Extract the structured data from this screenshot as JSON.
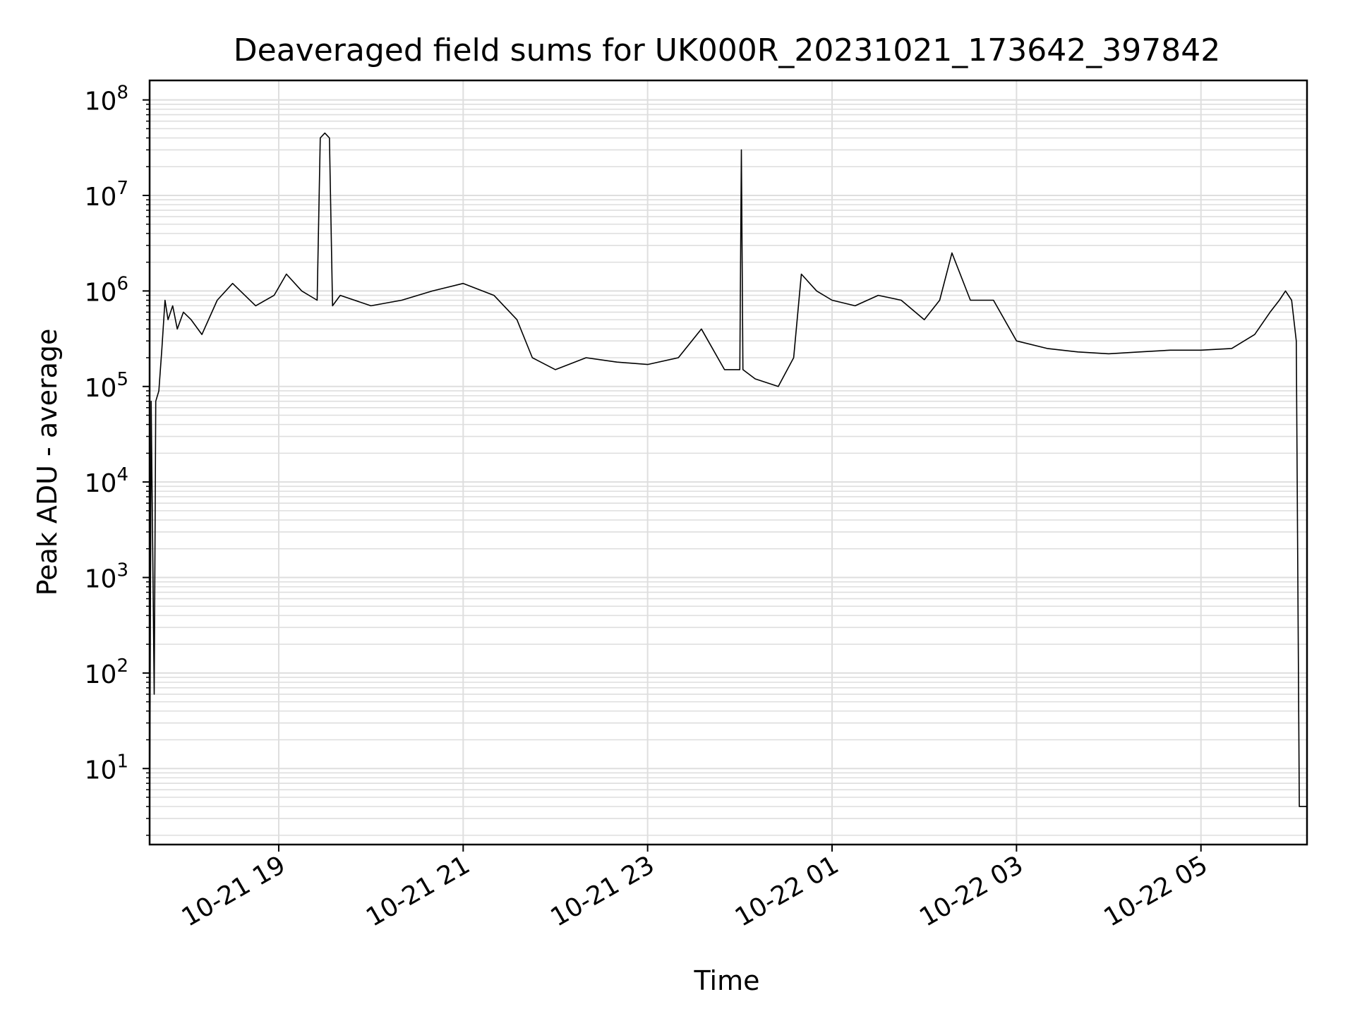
{
  "chart_data": {
    "type": "line",
    "title": "Deaveraged field sums for UK000R_20231021_173642_397842",
    "xlabel": "Time",
    "ylabel": "Peak ADU - average",
    "yscale": "log",
    "ylim": [
      1.6,
      160000000
    ],
    "xlim": [
      "2023-10-21 17:36",
      "2023-10-22 06:09"
    ],
    "x_ticks": [
      "10-21 19",
      "10-21 21",
      "10-21 23",
      "10-22 01",
      "10-22 03",
      "10-22 05"
    ],
    "y_ticks": [
      "10^1",
      "10^2",
      "10^3",
      "10^4",
      "10^5",
      "10^6",
      "10^7",
      "10^8"
    ],
    "grid": "major and minor, light gray",
    "line_color": "#000000",
    "series": [
      {
        "x": [
          "2023-10-21 17:36",
          "2023-10-21 17:37",
          "2023-10-21 17:39",
          "2023-10-21 17:40",
          "2023-10-21 17:42",
          "2023-10-21 17:44",
          "2023-10-21 17:46",
          "2023-10-21 17:48",
          "2023-10-21 17:51",
          "2023-10-21 17:54",
          "2023-10-21 17:58",
          "2023-10-21 18:03",
          "2023-10-21 18:10",
          "2023-10-21 18:20",
          "2023-10-21 18:30",
          "2023-10-21 18:45",
          "2023-10-21 18:57",
          "2023-10-21 19:05",
          "2023-10-21 19:15",
          "2023-10-21 19:25",
          "2023-10-21 19:27",
          "2023-10-21 19:30",
          "2023-10-21 19:33",
          "2023-10-21 19:35",
          "2023-10-21 19:40",
          "2023-10-21 20:00",
          "2023-10-21 20:20",
          "2023-10-21 20:40",
          "2023-10-21 21:00",
          "2023-10-21 21:20",
          "2023-10-21 21:35",
          "2023-10-21 21:45",
          "2023-10-21 22:00",
          "2023-10-21 22:20",
          "2023-10-21 22:40",
          "2023-10-21 23:00",
          "2023-10-21 23:20",
          "2023-10-21 23:35",
          "2023-10-21 23:50",
          "2023-10-22 00:00",
          "2023-10-22 00:01",
          "2023-10-22 00:02",
          "2023-10-22 00:10",
          "2023-10-22 00:25",
          "2023-10-22 00:35",
          "2023-10-22 00:40",
          "2023-10-22 00:50",
          "2023-10-22 01:00",
          "2023-10-22 01:15",
          "2023-10-22 01:30",
          "2023-10-22 01:45",
          "2023-10-22 02:00",
          "2023-10-22 02:10",
          "2023-10-22 02:18",
          "2023-10-22 02:30",
          "2023-10-22 02:45",
          "2023-10-22 03:00",
          "2023-10-22 03:20",
          "2023-10-22 03:40",
          "2023-10-22 04:00",
          "2023-10-22 04:20",
          "2023-10-22 04:40",
          "2023-10-22 05:00",
          "2023-10-22 05:20",
          "2023-10-22 05:35",
          "2023-10-22 05:45",
          "2023-10-22 05:51",
          "2023-10-22 05:55",
          "2023-10-22 05:59",
          "2023-10-22 06:02",
          "2023-10-22 06:04",
          "2023-10-22 06:09"
        ],
        "y": [
          2,
          70000,
          60,
          70000,
          90000,
          250000,
          800000,
          500000,
          700000,
          400000,
          600000,
          500000,
          350000,
          800000,
          1200000,
          700000,
          900000,
          1500000,
          1000000,
          800000,
          40000000,
          45000000,
          40000000,
          700000,
          900000,
          700000,
          800000,
          1000000,
          1200000,
          900000,
          500000,
          200000,
          150000,
          200000,
          180000,
          170000,
          200000,
          400000,
          150000,
          150000,
          30000000,
          150000,
          120000,
          100000,
          200000,
          1500000,
          1000000,
          800000,
          700000,
          900000,
          800000,
          500000,
          800000,
          2500000,
          800000,
          800000,
          300000,
          250000,
          230000,
          220000,
          230000,
          240000,
          240000,
          250000,
          350000,
          600000,
          800000,
          1000000,
          800000,
          300000,
          4,
          4
        ]
      }
    ]
  }
}
